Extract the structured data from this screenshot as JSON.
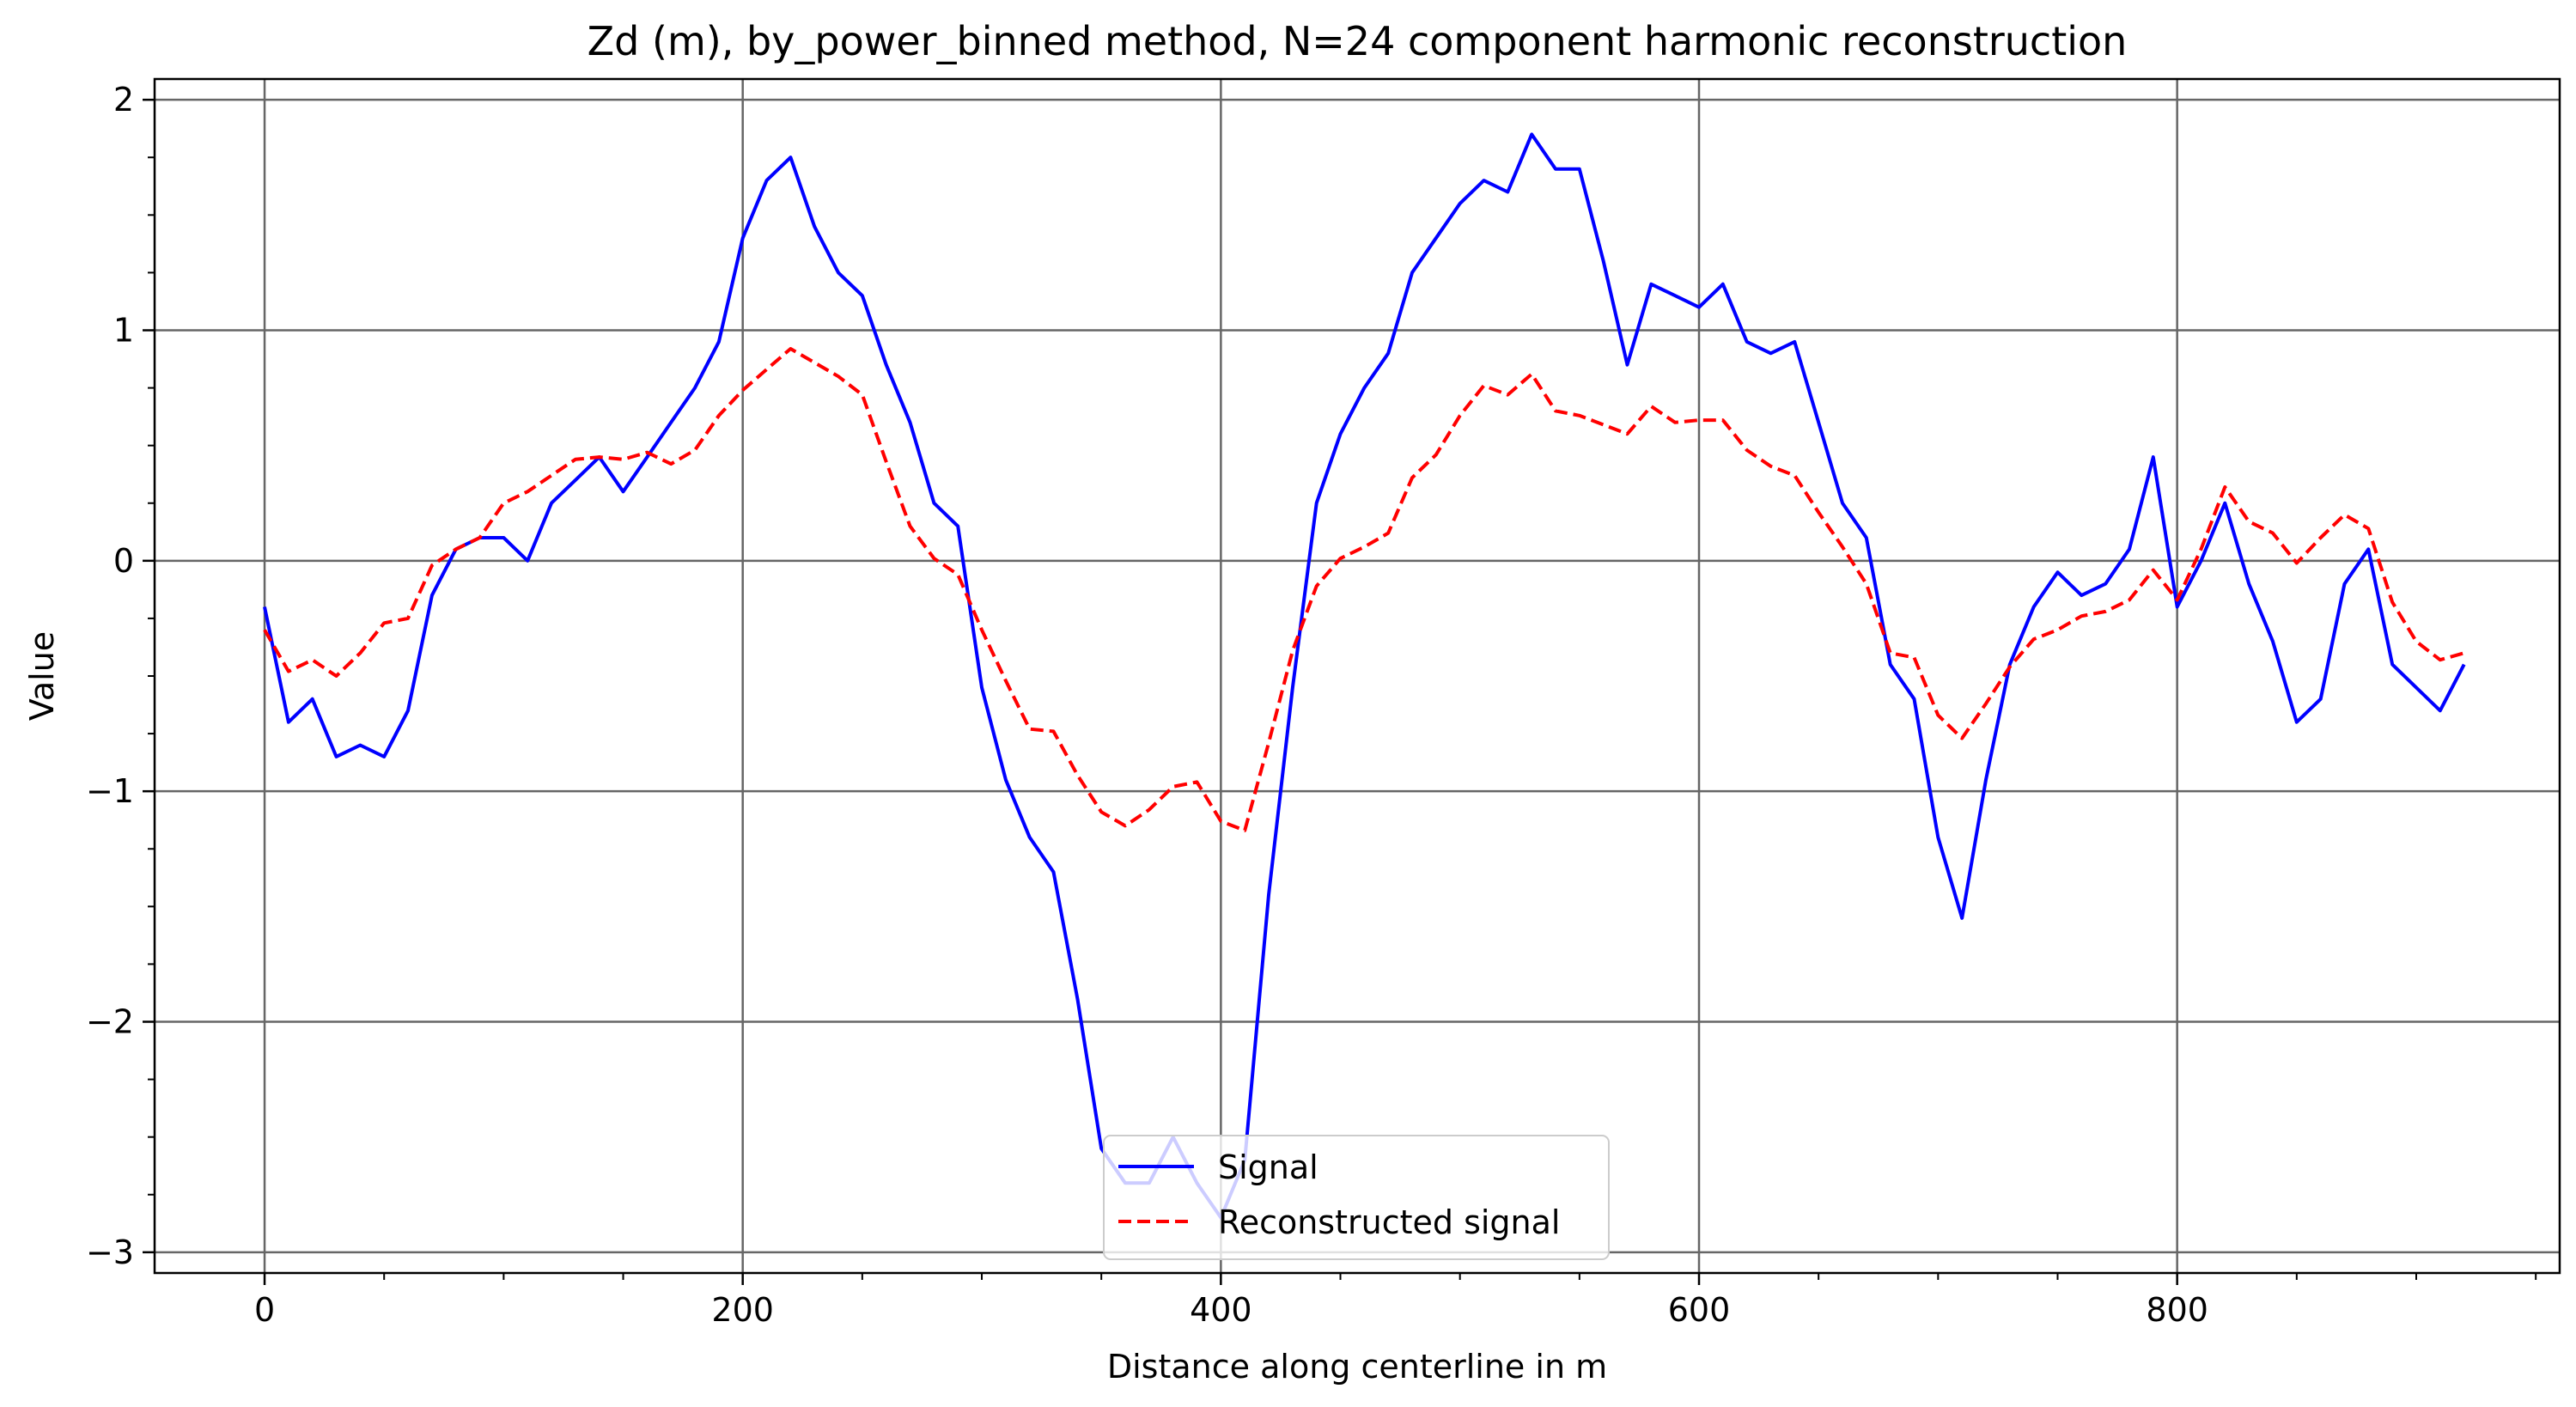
{
  "chart_data": {
    "type": "line",
    "title": "Zd (m), by_power_binned method, N=24 component harmonic reconstruction",
    "xlabel": "Distance along centerline in m",
    "ylabel": "Value",
    "xlim": [
      -46,
      960
    ],
    "ylim": [
      -3.09,
      2.09
    ],
    "xticks": [
      0,
      200,
      400,
      600,
      800
    ],
    "xtick_labels": [
      "0",
      "200",
      "400",
      "600",
      "800"
    ],
    "yticks": [
      -3,
      -2,
      -1,
      0,
      1,
      2
    ],
    "ytick_labels": [
      "−3",
      "−2",
      "−1",
      "0",
      "1",
      "2"
    ],
    "x_minor_step": 50,
    "y_minor_step": 0.25,
    "grid": true,
    "legend_position": "bottom-center",
    "x": [
      0,
      10,
      20,
      30,
      40,
      50,
      60,
      70,
      80,
      90,
      100,
      110,
      120,
      130,
      140,
      150,
      160,
      170,
      180,
      190,
      200,
      210,
      220,
      230,
      240,
      250,
      260,
      270,
      280,
      290,
      300,
      310,
      320,
      330,
      340,
      350,
      360,
      370,
      380,
      390,
      400,
      410,
      420,
      430,
      440,
      450,
      460,
      470,
      480,
      490,
      500,
      510,
      520,
      530,
      540,
      550,
      560,
      570,
      580,
      590,
      600,
      610,
      620,
      630,
      640,
      650,
      660,
      670,
      680,
      690,
      700,
      710,
      720,
      730,
      740,
      750,
      760,
      770,
      780,
      790,
      800,
      810,
      820,
      830,
      840,
      850,
      860,
      870,
      880,
      890,
      900,
      910,
      920
    ],
    "series": [
      {
        "name": "Signal",
        "color": "#0000ff",
        "style": "solid",
        "values": [
          -0.2,
          -0.7,
          -0.6,
          -0.85,
          -0.8,
          -0.85,
          -0.65,
          -0.15,
          0.05,
          0.1,
          0.1,
          0.0,
          0.25,
          0.35,
          0.45,
          0.3,
          0.45,
          0.6,
          0.75,
          0.95,
          1.4,
          1.65,
          1.75,
          1.45,
          1.25,
          1.15,
          0.85,
          0.6,
          0.25,
          0.15,
          -0.55,
          -0.95,
          -1.2,
          -1.35,
          -1.9,
          -2.55,
          -2.7,
          -2.7,
          -2.5,
          -2.7,
          -2.85,
          -2.6,
          -1.45,
          -0.55,
          0.25,
          0.55,
          0.75,
          0.9,
          1.25,
          1.4,
          1.55,
          1.65,
          1.6,
          1.85,
          1.7,
          1.7,
          1.3,
          0.85,
          1.2,
          1.15,
          1.1,
          1.2,
          0.95,
          0.9,
          0.95,
          0.6,
          0.25,
          0.1,
          -0.45,
          -0.6,
          -1.2,
          -1.55,
          -0.95,
          -0.45,
          -0.2,
          -0.05,
          -0.15,
          -0.1,
          0.05,
          0.45,
          -0.2,
          0.0,
          0.25,
          -0.1,
          -0.35,
          -0.7,
          -0.6,
          -0.1,
          0.05,
          -0.45,
          -0.55,
          -0.65,
          -0.45
        ]
      },
      {
        "name": "Reconstructed signal",
        "color": "#ff0000",
        "style": "dashed",
        "values": [
          -0.3,
          -0.48,
          -0.43,
          -0.5,
          -0.4,
          -0.27,
          -0.25,
          -0.02,
          0.05,
          0.1,
          0.25,
          0.3,
          0.37,
          0.44,
          0.45,
          0.44,
          0.47,
          0.42,
          0.48,
          0.63,
          0.74,
          0.83,
          0.92,
          0.86,
          0.8,
          0.72,
          0.43,
          0.15,
          0.01,
          -0.06,
          -0.3,
          -0.52,
          -0.73,
          -0.74,
          -0.93,
          -1.09,
          -1.15,
          -1.08,
          -0.98,
          -0.96,
          -1.13,
          -1.17,
          -0.79,
          -0.39,
          -0.11,
          0.01,
          0.06,
          0.12,
          0.36,
          0.46,
          0.63,
          0.76,
          0.72,
          0.81,
          0.65,
          0.63,
          0.59,
          0.55,
          0.67,
          0.6,
          0.61,
          0.61,
          0.48,
          0.41,
          0.37,
          0.21,
          0.06,
          -0.1,
          -0.4,
          -0.42,
          -0.67,
          -0.77,
          -0.62,
          -0.46,
          -0.34,
          -0.3,
          -0.24,
          -0.22,
          -0.17,
          -0.04,
          -0.17,
          0.05,
          0.32,
          0.17,
          0.12,
          -0.01,
          0.1,
          0.2,
          0.14,
          -0.18,
          -0.35,
          -0.43,
          -0.4
        ]
      }
    ]
  }
}
